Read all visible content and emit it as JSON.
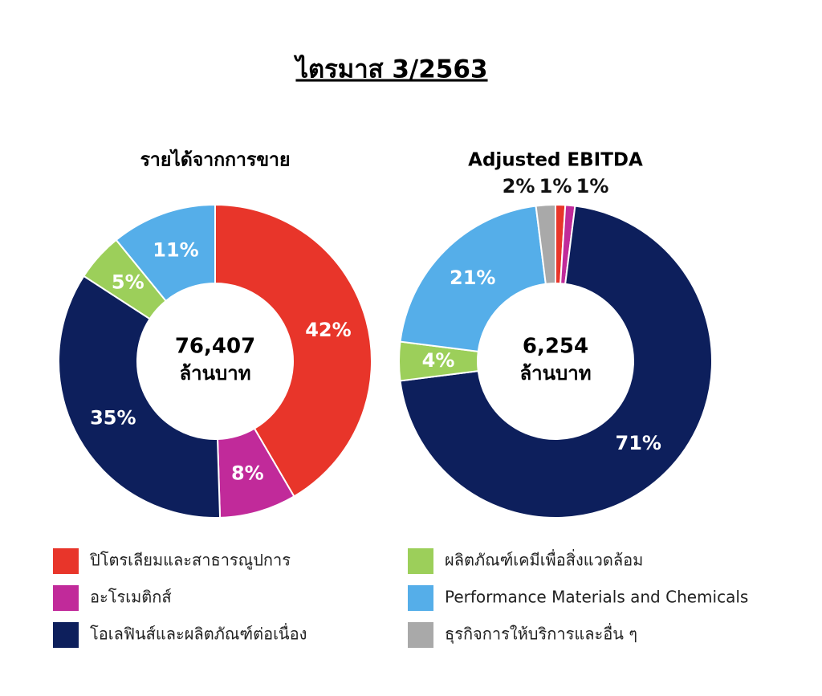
{
  "title": "ไตรมาส 3/2563",
  "legend": {
    "labels": [
      "ปิโตรเลียมและสาธารณูปการ",
      "อะโรเมติกส์",
      "โอเลฟินส์และผลิตภัณฑ์ต่อเนื่อง",
      "ผลิตภัณฑ์เคมีเพื่อสิ่งแวดล้อม",
      "Performance Materials and Chemicals",
      "ธุรกิจการให้บริการและอื่น ๆ"
    ],
    "colors": [
      "#e8352a",
      "#c12a9a",
      "#0d1f5c",
      "#9ccf5a",
      "#55aee9",
      "#a9a9a9"
    ]
  },
  "chart_data": [
    {
      "type": "pie",
      "title": "รายได้จากการขาย",
      "values": [
        42,
        8,
        35,
        5,
        11,
        null
      ],
      "value_labels": [
        "42%",
        "8%",
        "35%",
        "5%",
        "11%",
        null
      ],
      "total": {
        "value": 76407,
        "label": "76,407"
      },
      "total_unit": "ล้านบาท"
    },
    {
      "type": "pie",
      "title": "Adjusted EBITDA",
      "values": [
        1,
        1,
        71,
        4,
        21,
        2
      ],
      "value_labels": [
        "1%",
        "1%",
        "71%",
        "4%",
        "21%",
        "2%"
      ],
      "total": {
        "value": 6254,
        "label": "6,254"
      },
      "total_unit": "ล้านบาท"
    }
  ]
}
